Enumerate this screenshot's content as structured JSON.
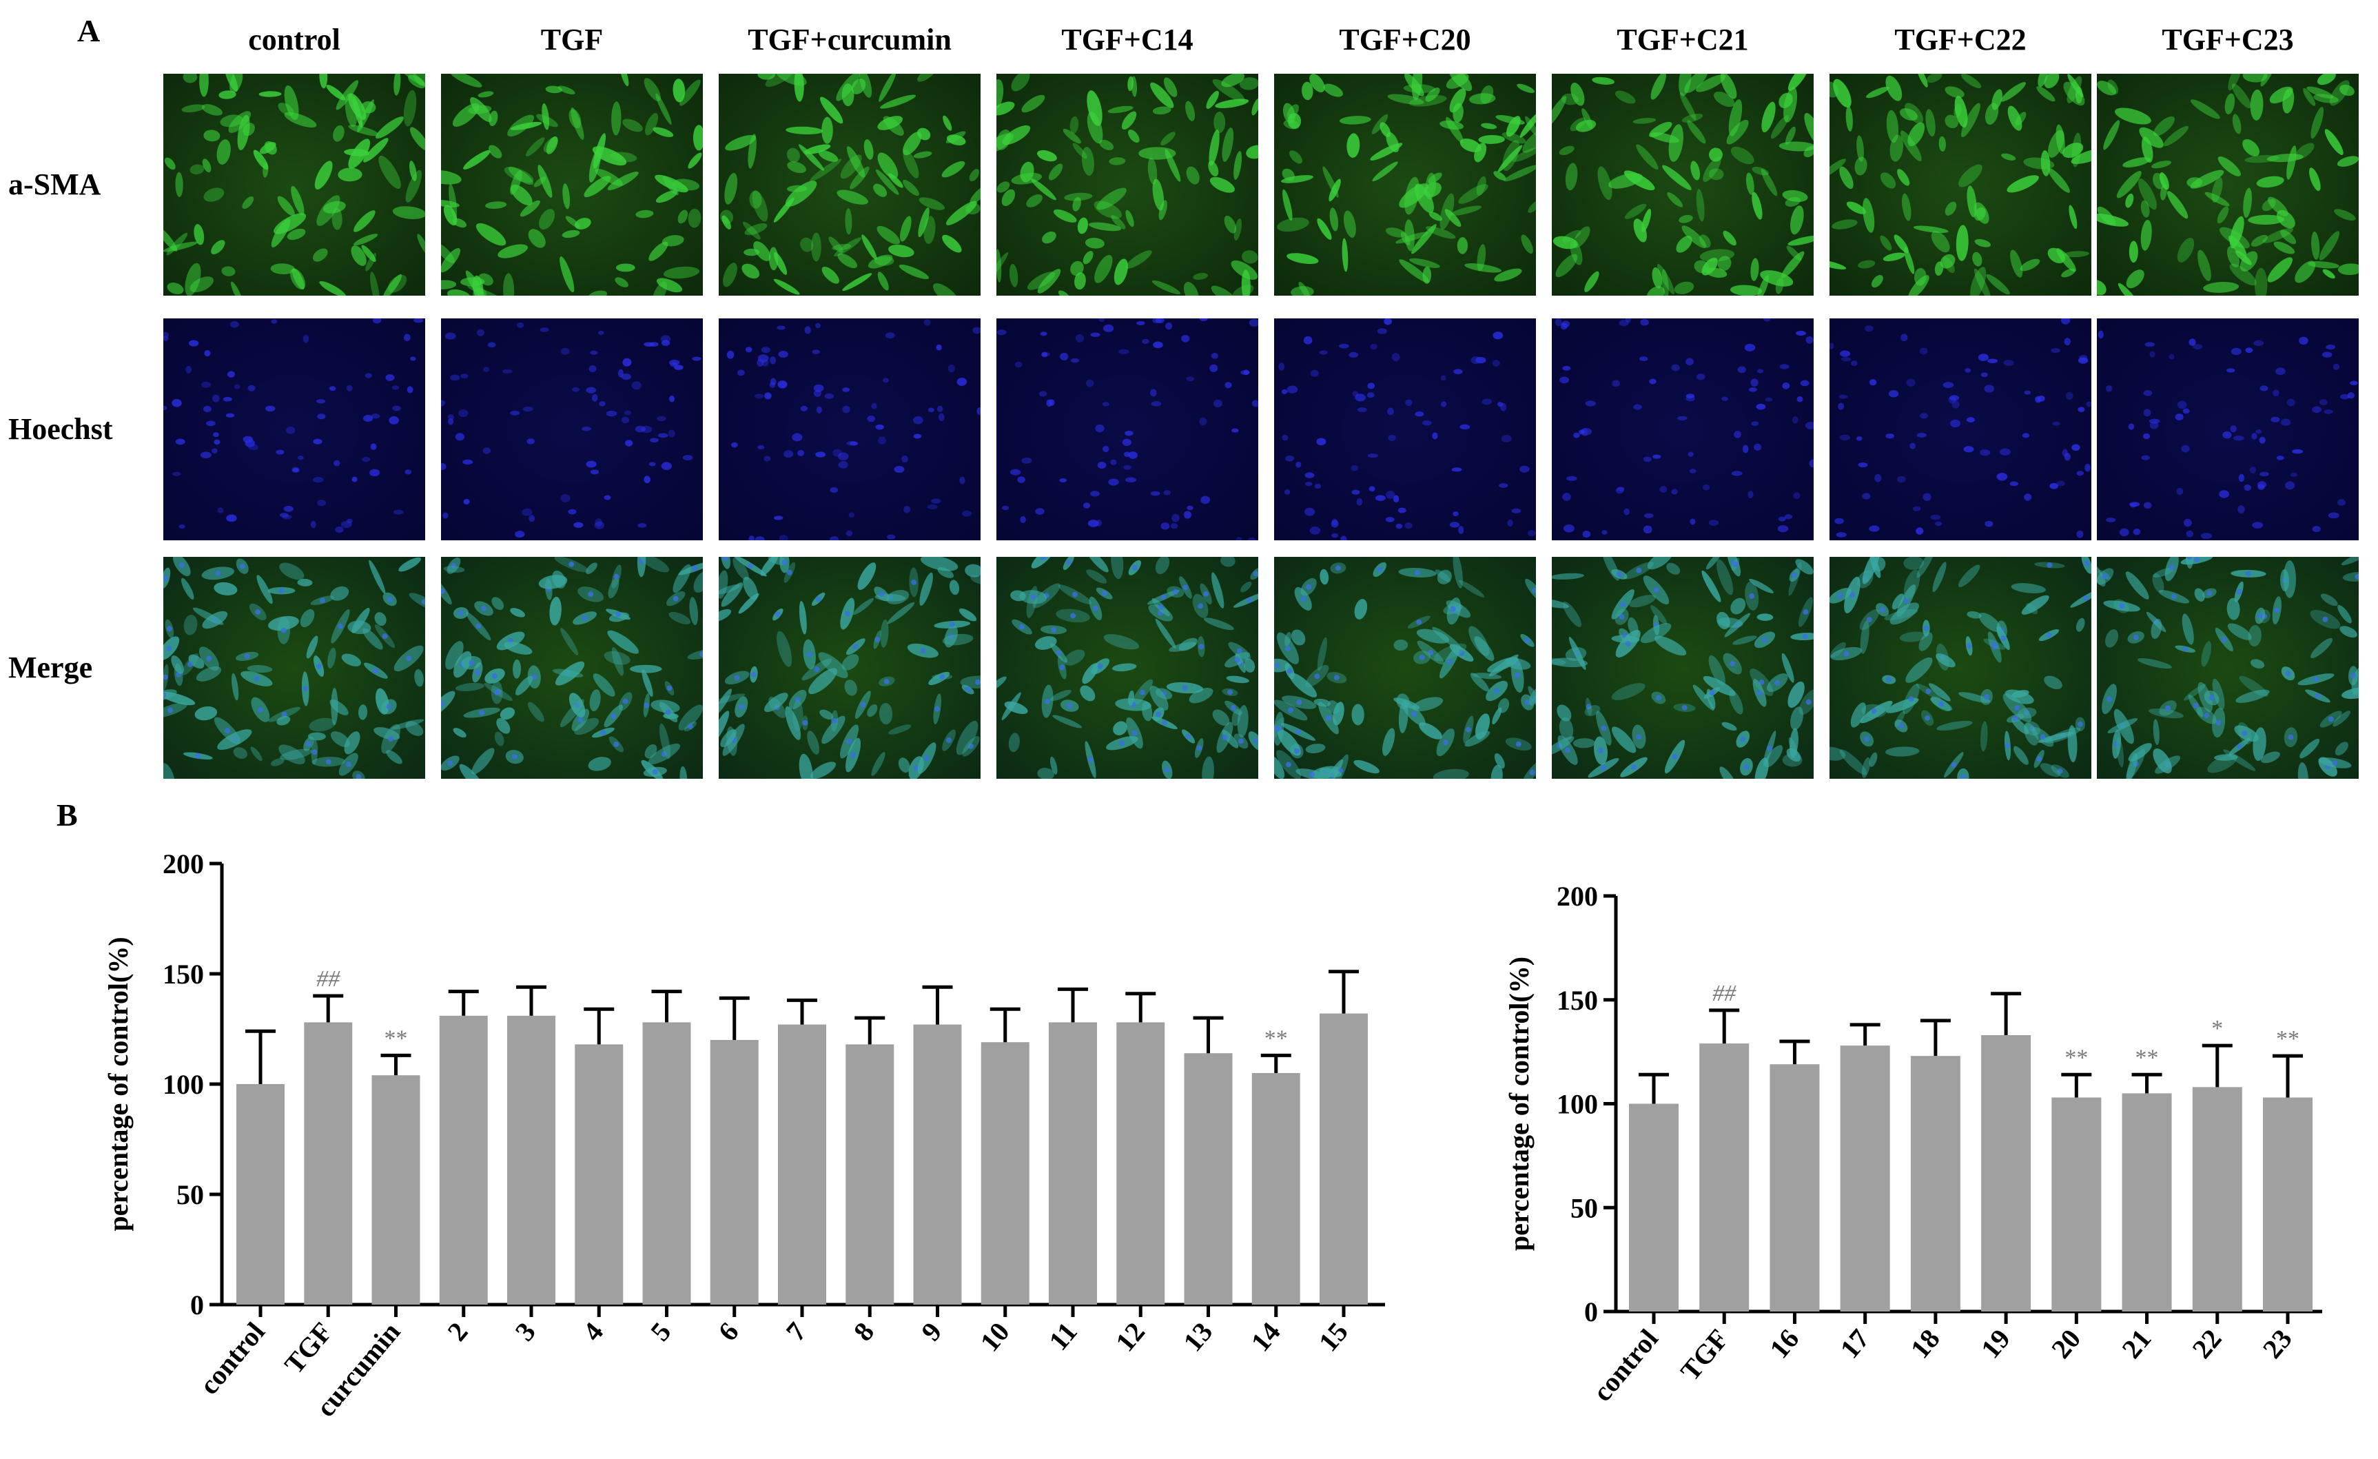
{
  "figure": {
    "panel_a_label": "A",
    "panel_b_label": "B",
    "columns": [
      "control",
      "TGF",
      "TGF+curcumin",
      "TGF+C14",
      "TGF+C20",
      "TGF+C21",
      "TGF+C22",
      "TGF+C23"
    ],
    "rows": [
      "a-SMA",
      "Hoechst",
      "Merge"
    ],
    "colors": {
      "asma_green": "#3bd23b",
      "asma_bg": "#0d2a0b",
      "hoechst_blue": "#2a2ee0",
      "hoechst_bg": "#050535",
      "merge_teal": "#3aa8a0",
      "bar_fill": "#a0a0a0",
      "annotation_gray": "#7a7a7a"
    }
  },
  "chart_data": [
    {
      "type": "bar",
      "ylabel": "percentage of control(%)",
      "ylim": [
        0,
        200
      ],
      "yticks": [
        0,
        50,
        100,
        150,
        200
      ],
      "categories": [
        "control",
        "TGF",
        "curcumin",
        "2",
        "3",
        "4",
        "5",
        "6",
        "7",
        "8",
        "9",
        "10",
        "11",
        "12",
        "13",
        "14",
        "15"
      ],
      "values": [
        100,
        128,
        104,
        131,
        131,
        118,
        128,
        120,
        127,
        118,
        127,
        119,
        128,
        128,
        114,
        105,
        132
      ],
      "error": [
        24,
        12,
        9,
        11,
        13,
        16,
        14,
        19,
        11,
        12,
        17,
        15,
        15,
        13,
        16,
        8,
        19
      ],
      "annotations": [
        "",
        "##",
        "**",
        "",
        "",
        "",
        "",
        "",
        "",
        "",
        "",
        "",
        "",
        "",
        "",
        "**",
        ""
      ]
    },
    {
      "type": "bar",
      "ylabel": "percentage of control(%)",
      "ylim": [
        0,
        200
      ],
      "yticks": [
        0,
        50,
        100,
        150,
        200
      ],
      "categories": [
        "control",
        "TGF",
        "16",
        "17",
        "18",
        "19",
        "20",
        "21",
        "22",
        "23"
      ],
      "values": [
        100,
        129,
        119,
        128,
        123,
        133,
        103,
        105,
        108,
        103
      ],
      "error": [
        14,
        16,
        11,
        10,
        17,
        20,
        11,
        9,
        20,
        20
      ],
      "annotations": [
        "",
        "##",
        "",
        "",
        "",
        "",
        "**",
        "**",
        "*",
        "**"
      ]
    }
  ]
}
